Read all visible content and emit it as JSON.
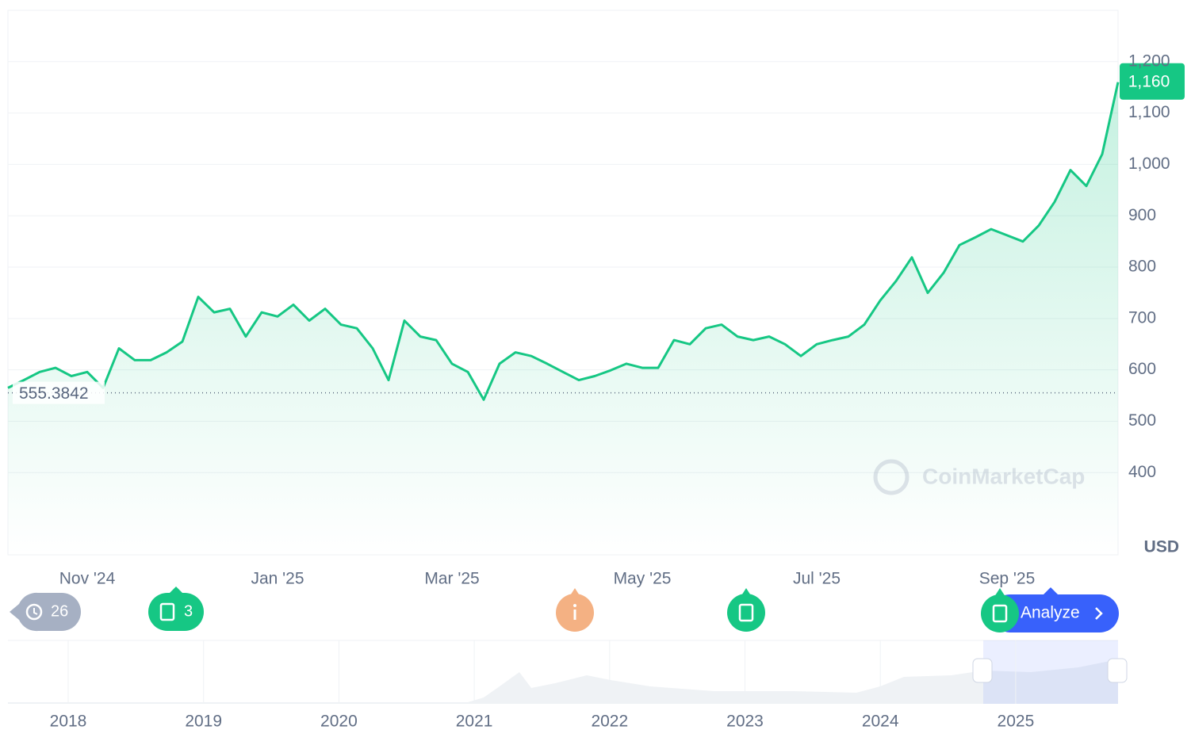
{
  "chart_data": {
    "type": "line",
    "categories": [
      null,
      null,
      null,
      null,
      null,
      "Nov '24",
      null,
      null,
      null,
      null,
      null,
      null,
      null,
      null,
      null,
      null,
      null,
      "Jan '25",
      null,
      null,
      null,
      null,
      null,
      null,
      null,
      null,
      null,
      null,
      "Mar '25",
      null,
      null,
      null,
      null,
      null,
      null,
      null,
      null,
      null,
      null,
      null,
      "May '25",
      null,
      null,
      null,
      null,
      null,
      null,
      null,
      null,
      null,
      null,
      "Jul '25",
      null,
      null,
      null,
      null,
      null,
      null,
      null,
      null,
      null,
      null,
      null,
      "Sep '25",
      null,
      null,
      null,
      null,
      null,
      null,
      null
    ],
    "values": [
      565,
      580,
      596,
      604,
      588,
      596,
      565,
      642,
      619,
      619,
      634,
      655,
      742,
      712,
      719,
      665,
      712,
      704,
      727,
      696,
      719,
      688,
      681,
      642,
      580,
      696,
      665,
      658,
      612,
      596,
      542,
      612,
      634,
      627,
      612,
      596,
      580,
      588,
      599,
      612,
      604,
      604,
      658,
      650,
      681,
      688,
      665,
      658,
      665,
      650,
      627,
      650,
      658,
      665,
      688,
      735,
      773,
      819,
      750,
      789,
      843,
      858,
      874,
      862,
      850,
      881,
      927,
      989,
      958,
      1020,
      1160
    ],
    "color": "#16c784",
    "ylim": [
      240,
      1300
    ],
    "yticks": [
      400,
      500,
      600,
      700,
      800,
      900,
      {
        "value": 1000,
        "label": "1,000"
      },
      {
        "value": 1100,
        "label": "1,100"
      },
      {
        "value": 1200,
        "label": "1,200"
      }
    ],
    "grid": true,
    "currency": "USD",
    "baseline": 555.3842,
    "current_price": {
      "value": 1160,
      "label": "1,160"
    },
    "watermark": "CoinMarketCap",
    "events": [
      "26",
      "3"
    ],
    "analyze_button": "Analyze",
    "navigator_years": [
      "2018",
      "2019",
      "2020",
      "2021",
      "2022",
      "2023",
      "2024",
      "2025"
    ]
  }
}
